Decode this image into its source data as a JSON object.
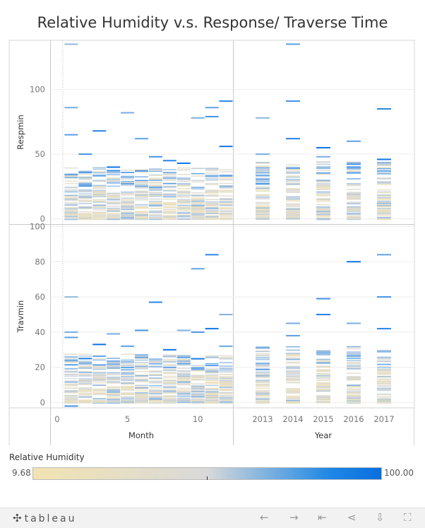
{
  "title": "Relative Humidity v.s. Response/ Traverse Time",
  "legend": {
    "title": "Relative Humidity",
    "min_label": "9.68",
    "max_label": "100.00"
  },
  "footer": {
    "brand": "tableau",
    "icons": [
      "tableau-logo-icon",
      "undo-icon",
      "redo-icon",
      "revert-icon",
      "share-icon",
      "download-icon",
      "fullscreen-icon"
    ]
  },
  "chart_data": {
    "type": "heatmap",
    "title": "Relative Humidity v.s. Response/ Traverse Time",
    "color_field": "Relative Humidity",
    "color_range": [
      9.68,
      100.0
    ],
    "columns": [
      {
        "xlabel": "Month",
        "categories": [
          1,
          2,
          3,
          4,
          5,
          6,
          7,
          8,
          9,
          10,
          11,
          12
        ],
        "tick_labels": [
          "0",
          "5",
          "10"
        ],
        "ticks": [
          0,
          5,
          10
        ],
        "xlim": [
          -0.5,
          12.5
        ]
      },
      {
        "xlabel": "Year",
        "categories": [
          2013,
          2014,
          2015,
          2016,
          2017
        ],
        "tick_labels": [
          "2013",
          "2014",
          "2015",
          "2016",
          "2017"
        ]
      }
    ],
    "rows": [
      {
        "ylabel": "Respmin",
        "yticks": [
          0,
          50,
          100
        ],
        "tick_labels": [
          "0",
          "50",
          "100"
        ],
        "ylim": [
          -4,
          138
        ]
      },
      {
        "ylabel": "Travmin",
        "yticks": [
          0,
          20,
          40,
          60,
          80,
          100
        ],
        "tick_labels": [
          "0",
          "20",
          "40",
          "60",
          "80",
          "100"
        ],
        "ylim": [
          -3,
          101
        ]
      }
    ],
    "notable_high_values": {
      "respmin_by_month": [
        [
          1,
          135
        ],
        [
          1,
          86
        ],
        [
          1,
          65
        ],
        [
          2,
          50
        ],
        [
          3,
          68
        ],
        [
          4,
          40
        ],
        [
          5,
          82
        ],
        [
          6,
          62
        ],
        [
          7,
          48
        ],
        [
          8,
          45
        ],
        [
          9,
          43
        ],
        [
          10,
          78
        ],
        [
          11,
          86
        ],
        [
          11,
          79
        ],
        [
          12,
          91
        ],
        [
          12,
          56
        ]
      ],
      "respmin_by_year": [
        [
          2013,
          78
        ],
        [
          2013,
          50
        ],
        [
          2014,
          135
        ],
        [
          2014,
          91
        ],
        [
          2014,
          62
        ],
        [
          2015,
          55
        ],
        [
          2015,
          48
        ],
        [
          2016,
          60
        ],
        [
          2016,
          40
        ],
        [
          2017,
          85
        ],
        [
          2017,
          46
        ]
      ],
      "travmin_by_month": [
        [
          1,
          60
        ],
        [
          1,
          40
        ],
        [
          1,
          37
        ],
        [
          1,
          -2
        ],
        [
          2,
          25
        ],
        [
          3,
          33
        ],
        [
          4,
          39
        ],
        [
          5,
          32
        ],
        [
          6,
          41
        ],
        [
          7,
          57
        ],
        [
          8,
          30
        ],
        [
          9,
          41
        ],
        [
          10,
          76
        ],
        [
          10,
          40
        ],
        [
          11,
          84
        ],
        [
          11,
          42
        ],
        [
          12,
          50
        ],
        [
          12,
          32
        ]
      ],
      "travmin_by_year": [
        [
          2013,
          31
        ],
        [
          2014,
          45
        ],
        [
          2014,
          38
        ],
        [
          2015,
          59
        ],
        [
          2015,
          50
        ],
        [
          2016,
          80
        ],
        [
          2016,
          45
        ],
        [
          2017,
          84
        ],
        [
          2017,
          60
        ],
        [
          2017,
          42
        ]
      ]
    }
  }
}
